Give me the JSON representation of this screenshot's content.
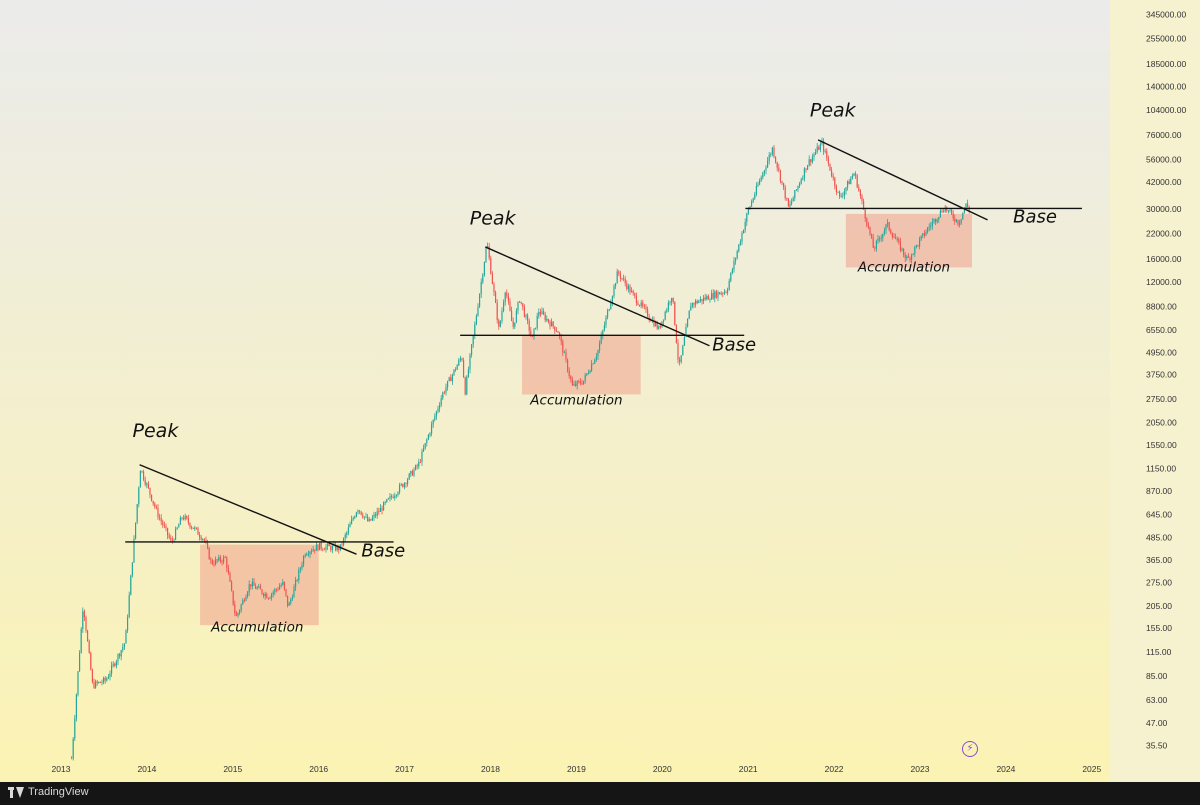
{
  "chart_data": {
    "type": "candlestick",
    "scale": "log",
    "x_ticks": [
      "2013",
      "2014",
      "2015",
      "2016",
      "2017",
      "2018",
      "2019",
      "2020",
      "2021",
      "2022",
      "2023",
      "2024",
      "2025"
    ],
    "y_ticks": [
      "345000.00",
      "255000.00",
      "185000.00",
      "140000.00",
      "104000.00",
      "76000.00",
      "56000.00",
      "42000.00",
      "30000.00",
      "22000.00",
      "16000.00",
      "12000.00",
      "8800.00",
      "6550.00",
      "4950.00",
      "3750.00",
      "2750.00",
      "2050.00",
      "1550.00",
      "1150.00",
      "870.00",
      "645.00",
      "485.00",
      "365.00",
      "275.00",
      "205.00",
      "155.00",
      "115.00",
      "85.00",
      "63.00",
      "47.00",
      "35.50"
    ],
    "price_path": [
      {
        "date": "2013-02-15",
        "price": 30
      },
      {
        "date": "2013-04-05",
        "price": 210
      },
      {
        "date": "2013-05-15",
        "price": 75
      },
      {
        "date": "2013-07-10",
        "price": 80
      },
      {
        "date": "2013-10-01",
        "price": 130
      },
      {
        "date": "2013-12-04",
        "price": 1150
      },
      {
        "date": "2014-02-15",
        "price": 650
      },
      {
        "date": "2014-04-15",
        "price": 450
      },
      {
        "date": "2014-06-01",
        "price": 630
      },
      {
        "date": "2014-09-01",
        "price": 470
      },
      {
        "date": "2014-10-01",
        "price": 350
      },
      {
        "date": "2014-12-01",
        "price": 370
      },
      {
        "date": "2015-01-14",
        "price": 175
      },
      {
        "date": "2015-03-15",
        "price": 270
      },
      {
        "date": "2015-06-01",
        "price": 230
      },
      {
        "date": "2015-08-01",
        "price": 270
      },
      {
        "date": "2015-08-25",
        "price": 200
      },
      {
        "date": "2015-11-04",
        "price": 400
      },
      {
        "date": "2016-01-01",
        "price": 430
      },
      {
        "date": "2016-04-01",
        "price": 420
      },
      {
        "date": "2016-06-15",
        "price": 700
      },
      {
        "date": "2016-08-01",
        "price": 580
      },
      {
        "date": "2016-12-31",
        "price": 960
      },
      {
        "date": "2017-03-01",
        "price": 1200
      },
      {
        "date": "2017-06-10",
        "price": 2900
      },
      {
        "date": "2017-09-01",
        "price": 4700
      },
      {
        "date": "2017-09-15",
        "price": 3000
      },
      {
        "date": "2017-12-17",
        "price": 19500
      },
      {
        "date": "2018-02-06",
        "price": 6500
      },
      {
        "date": "2018-03-05",
        "price": 11000
      },
      {
        "date": "2018-04-06",
        "price": 6700
      },
      {
        "date": "2018-05-05",
        "price": 9700
      },
      {
        "date": "2018-06-28",
        "price": 5800
      },
      {
        "date": "2018-07-25",
        "price": 8300
      },
      {
        "date": "2018-10-15",
        "price": 6400
      },
      {
        "date": "2018-12-15",
        "price": 3200
      },
      {
        "date": "2019-02-01",
        "price": 3450
      },
      {
        "date": "2019-04-02",
        "price": 5000
      },
      {
        "date": "2019-06-26",
        "price": 13500
      },
      {
        "date": "2019-09-01",
        "price": 10000
      },
      {
        "date": "2019-12-17",
        "price": 6600
      },
      {
        "date": "2020-02-12",
        "price": 10300
      },
      {
        "date": "2020-03-12",
        "price": 4000
      },
      {
        "date": "2020-05-01",
        "price": 9000
      },
      {
        "date": "2020-07-25",
        "price": 10000
      },
      {
        "date": "2020-10-01",
        "price": 10700
      },
      {
        "date": "2020-12-31",
        "price": 29000
      },
      {
        "date": "2021-04-14",
        "price": 64000
      },
      {
        "date": "2021-06-22",
        "price": 30000
      },
      {
        "date": "2021-09-07",
        "price": 52000
      },
      {
        "date": "2021-11-10",
        "price": 68000
      },
      {
        "date": "2022-01-24",
        "price": 34000
      },
      {
        "date": "2022-03-28",
        "price": 47000
      },
      {
        "date": "2022-06-18",
        "price": 18000
      },
      {
        "date": "2022-08-14",
        "price": 24500
      },
      {
        "date": "2022-11-09",
        "price": 15700
      },
      {
        "date": "2023-01-31",
        "price": 23000
      },
      {
        "date": "2023-04-14",
        "price": 30500
      },
      {
        "date": "2023-06-15",
        "price": 25000
      },
      {
        "date": "2023-07-14",
        "price": 31500
      },
      {
        "date": "2023-08-01",
        "price": 29500
      }
    ],
    "annotations": {
      "peak_labels": [
        "Peak",
        "Peak",
        "Peak"
      ],
      "base_labels": [
        "Base",
        "Base",
        "Base"
      ],
      "accumulation_labels": [
        "Accumulation",
        "Accumulation",
        "Accumulation"
      ]
    },
    "colors": {
      "up": "#26a69a",
      "down": "#ef5350",
      "accumulation_box": "#f0a08c",
      "bg_top": "#ebebeb",
      "bg_bottom": "#fbf3b3"
    }
  },
  "footer": {
    "brand": "TradingView"
  },
  "icons": {
    "bolt": "lightning-icon"
  }
}
